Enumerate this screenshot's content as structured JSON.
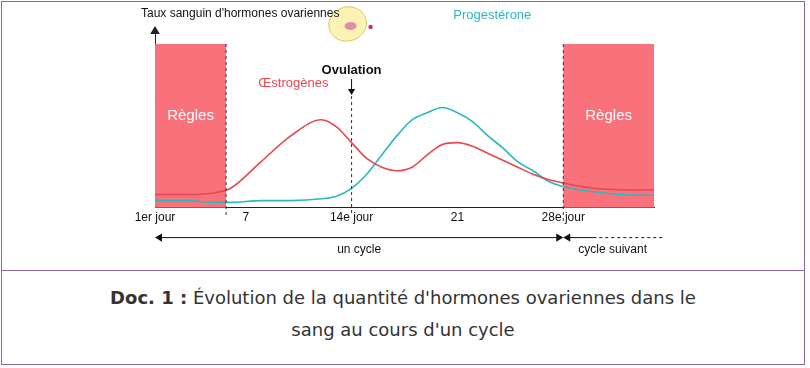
{
  "chart_data": {
    "type": "line",
    "y_label": "Taux sanguin d'hormones ovariennes",
    "x": [
      1,
      3,
      5,
      6,
      8,
      10,
      12,
      13,
      14,
      15,
      16,
      17,
      18,
      19,
      20,
      21,
      22,
      23,
      24,
      25,
      26,
      27,
      28,
      30,
      33,
      34
    ],
    "series": [
      {
        "name": "Œstrogènes",
        "color": "#e8474f",
        "values": [
          0.75,
          0.75,
          0.85,
          1.1,
          2.6,
          4.1,
          5.0,
          4.6,
          3.7,
          2.8,
          2.3,
          2.1,
          2.3,
          3.0,
          3.6,
          3.7,
          3.5,
          3.1,
          2.7,
          2.3,
          1.9,
          1.6,
          1.4,
          1.1,
          1.0,
          1.0
        ]
      },
      {
        "name": "Progestérone",
        "color": "#2bb8bf",
        "values": [
          0.4,
          0.4,
          0.3,
          0.3,
          0.4,
          0.4,
          0.5,
          0.65,
          1.1,
          1.9,
          3.0,
          4.1,
          5.0,
          5.4,
          5.7,
          5.4,
          4.9,
          4.1,
          3.4,
          2.6,
          2.1,
          1.5,
          1.2,
          0.9,
          0.7,
          0.7
        ]
      }
    ],
    "xlim": [
      1,
      34
    ],
    "xticks": [
      {
        "value": 1,
        "label": "1er jour"
      },
      7,
      {
        "value": 14,
        "label": "14e jour"
      },
      21,
      {
        "value": 28,
        "label": "28e jour"
      }
    ],
    "ylim": [
      0,
      10
    ],
    "tick_labels": "x",
    "grid": false,
    "periods": [
      {
        "label": "Règles",
        "x_range": [
          1,
          5.7
        ]
      },
      {
        "label": "Règles",
        "x_range": [
          28,
          34
        ]
      }
    ],
    "ovulation": {
      "label": "Ovulation",
      "x": 14
    },
    "cycles": [
      {
        "label": "un cycle",
        "x_range": [
          1,
          28
        ]
      },
      {
        "label": "cycle suivant",
        "x_range": [
          28,
          34
        ]
      }
    ]
  },
  "caption": {
    "label": "Doc. 1 :",
    "text": "Évolution de la quantité d'hormones ovariennes dans le sang au cours d'un cycle"
  }
}
